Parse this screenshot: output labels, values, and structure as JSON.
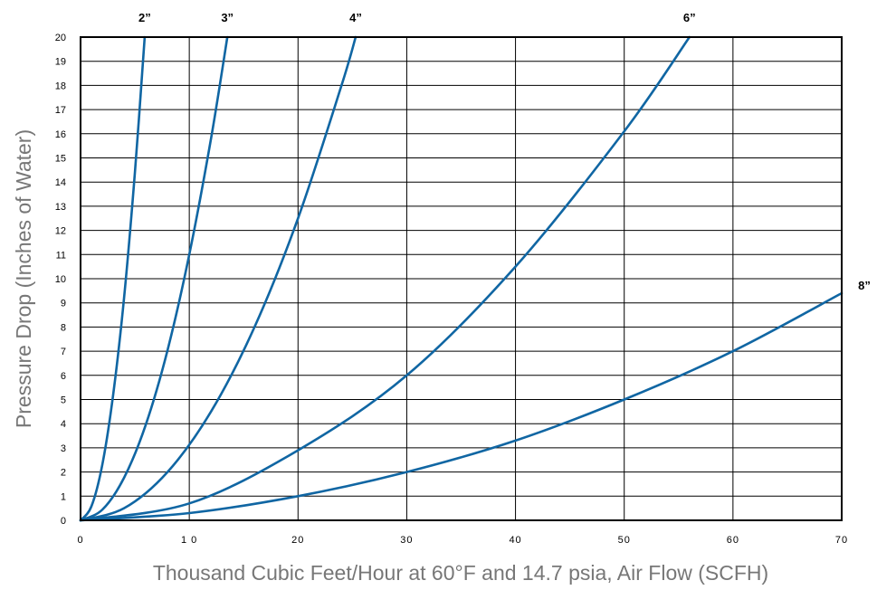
{
  "chart_data": {
    "type": "line",
    "title": "",
    "xlabel": "Thousand Cubic Feet/Hour at 60°F and 14.7 psia, Air Flow (SCFH)",
    "ylabel": "Pressure Drop (Inches of Water)",
    "xlim": [
      0,
      70
    ],
    "ylim": [
      0,
      20
    ],
    "x_ticks": [
      {
        "value": 0,
        "label": "0"
      },
      {
        "value": 10,
        "label": "1 0"
      },
      {
        "value": 20,
        "label": "20"
      },
      {
        "value": 30,
        "label": "30"
      },
      {
        "value": 40,
        "label": "40"
      },
      {
        "value": 50,
        "label": "50"
      },
      {
        "value": 60,
        "label": "60"
      },
      {
        "value": 70,
        "label": "70"
      }
    ],
    "y_ticks": [
      0,
      1,
      2,
      3,
      4,
      5,
      6,
      7,
      8,
      9,
      10,
      11,
      12,
      13,
      14,
      15,
      16,
      17,
      18,
      19,
      20
    ],
    "grid": true,
    "line_color": "#1066a3",
    "series": [
      {
        "name": "2”",
        "x": [
          0,
          1,
          2,
          3,
          4,
          5,
          5.9
        ],
        "y": [
          0,
          0.58,
          2.3,
          5.2,
          9.2,
          14.4,
          20
        ]
      },
      {
        "name": "3”",
        "x": [
          0,
          2,
          4,
          6,
          8,
          10,
          12,
          13.5
        ],
        "y": [
          0,
          0.44,
          1.76,
          3.96,
          7.04,
          11,
          15.8,
          20
        ]
      },
      {
        "name": "4”",
        "x": [
          0,
          4,
          8,
          12,
          16,
          20,
          24,
          25.3
        ],
        "y": [
          0,
          0.5,
          2.0,
          4.5,
          8.0,
          12.5,
          18,
          20
        ]
      },
      {
        "name": "6”",
        "x": [
          0,
          10,
          20,
          30,
          40,
          50,
          56
        ],
        "y": [
          0,
          0.7,
          2.9,
          6.0,
          10.5,
          16.1,
          20
        ]
      },
      {
        "name": "8”",
        "x": [
          0,
          10,
          20,
          30,
          40,
          50,
          60,
          70
        ],
        "y": [
          0,
          0.3,
          1.0,
          2.0,
          3.3,
          5.0,
          7.0,
          9.4
        ]
      }
    ]
  }
}
